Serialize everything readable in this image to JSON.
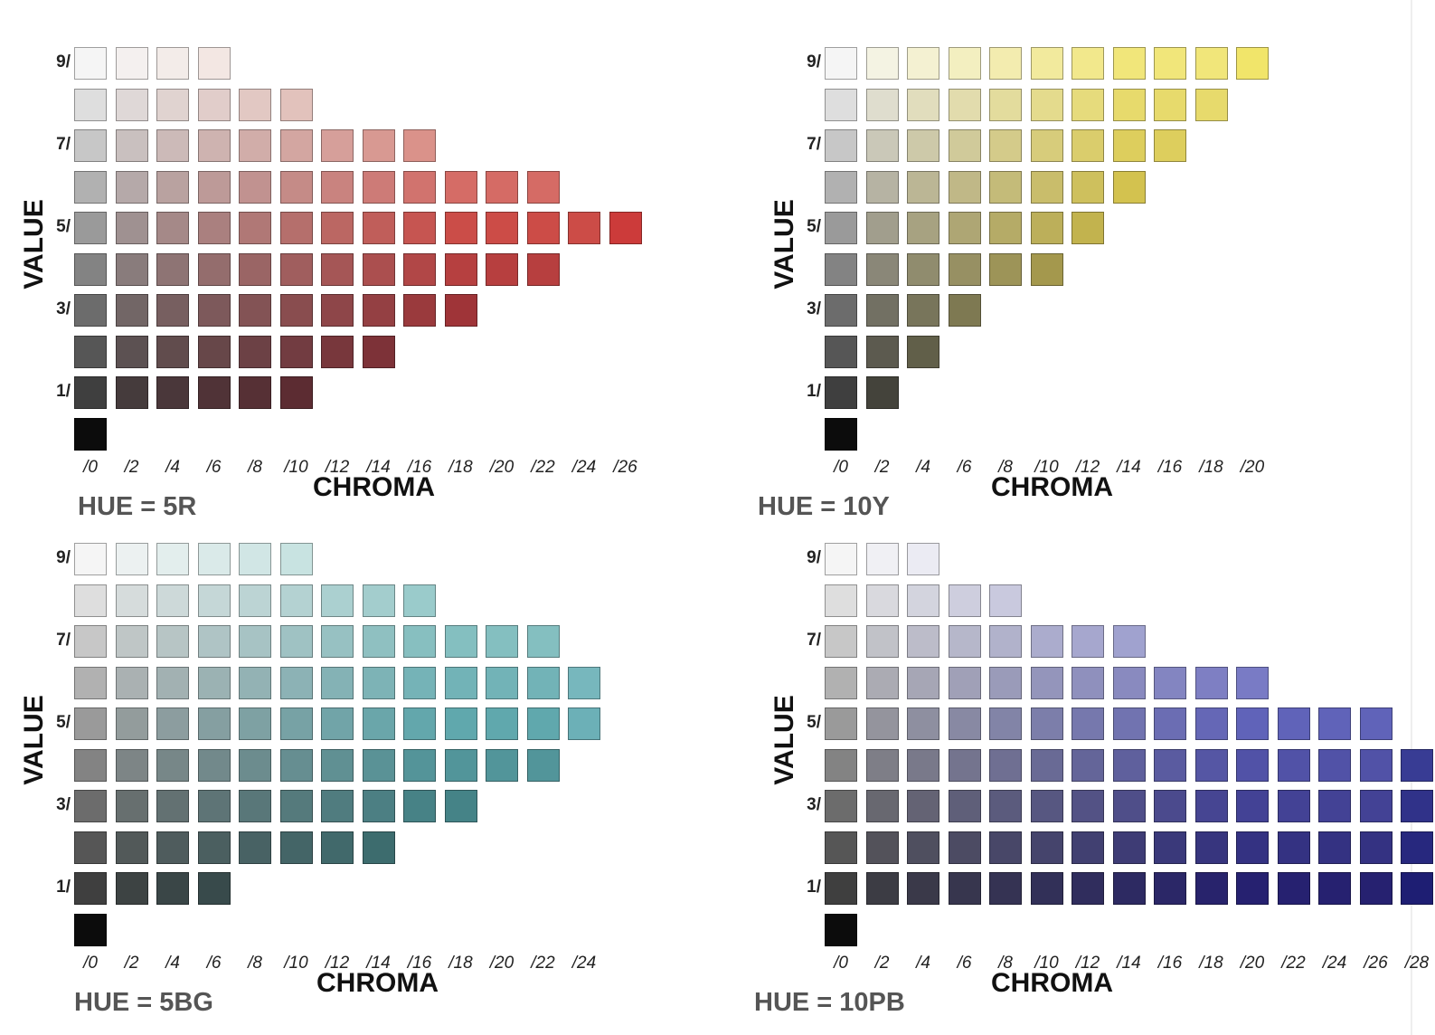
{
  "axis": {
    "value_label": "VALUE",
    "chroma_label": "CHROMA"
  },
  "value_ticks": [
    "9/",
    "7/",
    "5/",
    "3/",
    "1/"
  ],
  "panels": [
    {
      "id": "5r",
      "hue_label": "HUE = 5R",
      "chroma_ticks": [
        "/0",
        "/2",
        "/4",
        "/6",
        "/8",
        "/10",
        "/12",
        "/14",
        "/16",
        "/18",
        "/20",
        "/22",
        "/24",
        "/26"
      ],
      "colors": {
        "neutral": "#bbbbbb",
        "light": "#eecbbd",
        "mid": "#cc4a46",
        "dark": "#5c1020",
        "peak": "#cc2227"
      },
      "rows": [
        {
          "value": 9,
          "max_chroma": 6
        },
        {
          "value": 8,
          "max_chroma": 10
        },
        {
          "value": 7,
          "max_chroma": 16
        },
        {
          "value": 6,
          "max_chroma": 22
        },
        {
          "value": 5,
          "max_chroma": 26
        },
        {
          "value": 4,
          "max_chroma": 22
        },
        {
          "value": 3,
          "max_chroma": 18
        },
        {
          "value": 2,
          "max_chroma": 14
        },
        {
          "value": 1,
          "max_chroma": 10
        },
        {
          "value": 0,
          "max_chroma": 0
        }
      ]
    },
    {
      "id": "10y",
      "hue_label": "HUE = 10Y",
      "chroma_ticks": [
        "/0",
        "/2",
        "/4",
        "/6",
        "/8",
        "/10",
        "/12",
        "/14",
        "/16",
        "/18",
        "/20"
      ],
      "colors": {
        "neutral": "#bbbbbb",
        "light": "#f1e67a",
        "mid": "#c9b640",
        "dark": "#4a4718",
        "peak": "#f2e351"
      },
      "rows": [
        {
          "value": 9,
          "max_chroma": 20
        },
        {
          "value": 8,
          "max_chroma": 18
        },
        {
          "value": 7,
          "max_chroma": 16
        },
        {
          "value": 6,
          "max_chroma": 14
        },
        {
          "value": 5,
          "max_chroma": 12
        },
        {
          "value": 4,
          "max_chroma": 10
        },
        {
          "value": 3,
          "max_chroma": 6
        },
        {
          "value": 2,
          "max_chroma": 4
        },
        {
          "value": 1,
          "max_chroma": 2
        },
        {
          "value": 0,
          "max_chroma": 0
        }
      ]
    },
    {
      "id": "5bg",
      "hue_label": "HUE = 5BG",
      "chroma_ticks": [
        "/0",
        "/2",
        "/4",
        "/6",
        "/8",
        "/10",
        "/12",
        "/14",
        "/16",
        "/18",
        "/20",
        "/22",
        "/24"
      ],
      "colors": {
        "neutral": "#bbbbbb",
        "light": "#a9d6d3",
        "mid": "#5fa7ad",
        "dark": "#1d4b4c",
        "peak": "#7fbcc6"
      },
      "rows": [
        {
          "value": 9,
          "max_chroma": 10
        },
        {
          "value": 8,
          "max_chroma": 16
        },
        {
          "value": 7,
          "max_chroma": 22
        },
        {
          "value": 6,
          "max_chroma": 24
        },
        {
          "value": 5,
          "max_chroma": 24
        },
        {
          "value": 4,
          "max_chroma": 22
        },
        {
          "value": 3,
          "max_chroma": 18
        },
        {
          "value": 2,
          "max_chroma": 14
        },
        {
          "value": 1,
          "max_chroma": 6
        },
        {
          "value": 0,
          "max_chroma": 0
        }
      ]
    },
    {
      "id": "10pb",
      "hue_label": "HUE = 10PB",
      "chroma_ticks": [
        "/0",
        "/2",
        "/4",
        "/6",
        "/8",
        "/10",
        "/12",
        "/14",
        "/16",
        "/18",
        "/20",
        "/22",
        "/24",
        "/26",
        "/28"
      ],
      "colors": {
        "neutral": "#bbbbbb",
        "light": "#c2c3eb",
        "mid": "#5f62b8",
        "dark": "#17115e",
        "peak": "#131a78"
      },
      "rows": [
        {
          "value": 9,
          "max_chroma": 4
        },
        {
          "value": 8,
          "max_chroma": 8
        },
        {
          "value": 7,
          "max_chroma": 14
        },
        {
          "value": 6,
          "max_chroma": 20
        },
        {
          "value": 5,
          "max_chroma": 26
        },
        {
          "value": 4,
          "max_chroma": 28
        },
        {
          "value": 3,
          "max_chroma": 28
        },
        {
          "value": 2,
          "max_chroma": 28
        },
        {
          "value": 1,
          "max_chroma": 28
        },
        {
          "value": 0,
          "max_chroma": 0
        }
      ]
    }
  ]
}
